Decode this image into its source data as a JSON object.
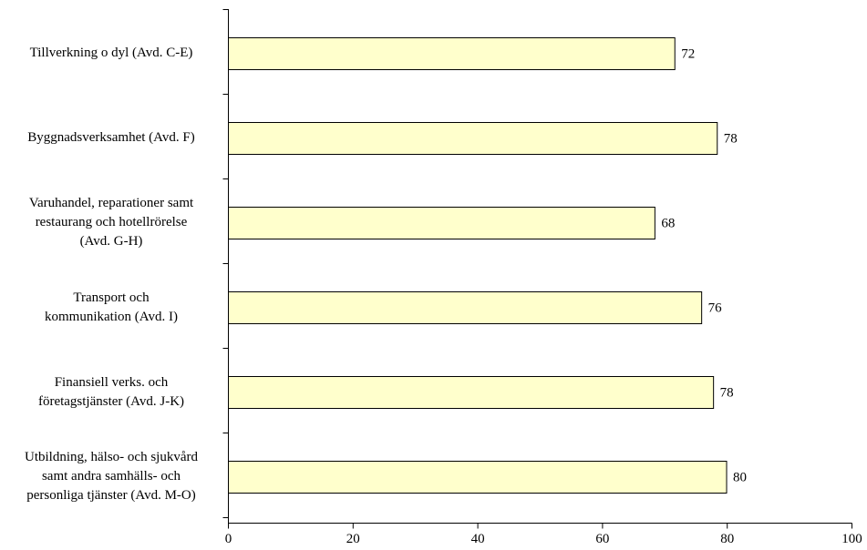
{
  "chart_data": {
    "type": "bar",
    "orientation": "horizontal",
    "categories": [
      "Tillverkning o dyl (Avd. C-E)",
      "Byggnadsverksamhet (Avd. F)",
      "Varuhandel, reparationer samt restaurang och hotellrörelse (Avd. G-H)",
      "Transport och kommunikation (Avd. I)",
      "Finansiell verks. och företagstjänster (Avd. J-K)",
      "Utbildning, hälso- och sjukvård samt andra samhälls- och personliga tjänster (Avd. M-O)"
    ],
    "category_lines": [
      [
        "Tillverkning o dyl (Avd. C-E)"
      ],
      [
        "Byggnadsverksamhet (Avd. F)"
      ],
      [
        "Varuhandel, reparationer samt",
        "restaurang och hotellrörelse",
        "(Avd. G-H)"
      ],
      [
        "Transport och",
        "kommunikation (Avd. I)"
      ],
      [
        "Finansiell verks. och",
        "företagstjänster (Avd. J-K)"
      ],
      [
        "Utbildning, hälso- och sjukvård",
        "samt andra samhälls- och",
        "personliga tjänster (Avd. M-O)"
      ]
    ],
    "values": [
      71.6,
      78.4,
      68.4,
      75.9,
      77.8,
      79.9
    ],
    "value_labels": [
      "72",
      "78",
      "68",
      "76",
      "78",
      "80"
    ],
    "xlim": [
      0,
      100
    ],
    "xticks": [
      0,
      20,
      40,
      60,
      80,
      100
    ],
    "title": "",
    "xlabel": "",
    "ylabel": "",
    "grid": false,
    "legend": "none",
    "bar_color": "#ffffcc",
    "bar_stroke": "#000000"
  }
}
